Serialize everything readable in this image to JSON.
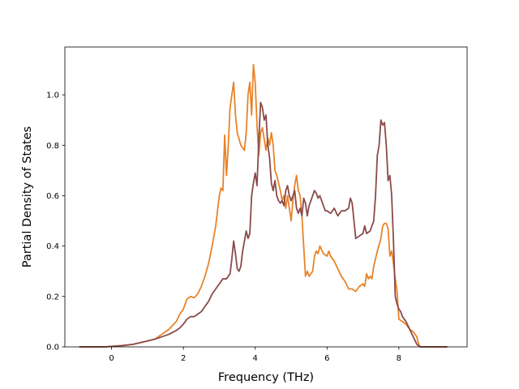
{
  "chart_data": {
    "type": "line",
    "title": "",
    "xlabel": "Frequency (THz)",
    "ylabel": "Partial Density of States",
    "xlim": [
      -1.3,
      9.9
    ],
    "ylim": [
      0.0,
      1.19
    ],
    "xticks": [
      0,
      2,
      4,
      6,
      8
    ],
    "yticks": [
      0.0,
      0.2,
      0.4,
      0.6,
      0.8,
      1.0
    ],
    "xtick_labels": [
      "0",
      "2",
      "4",
      "6",
      "8"
    ],
    "ytick_labels": [
      "0.0",
      "0.2",
      "0.4",
      "0.6",
      "0.8",
      "1.0"
    ],
    "grid": false,
    "legend": "none",
    "series": [
      {
        "color": "#e8832a",
        "x": [
          -0.9,
          -0.2,
          0.0,
          0.3,
          0.6,
          0.9,
          1.2,
          1.4,
          1.6,
          1.8,
          1.9,
          2.0,
          2.1,
          2.2,
          2.3,
          2.4,
          2.5,
          2.6,
          2.7,
          2.8,
          2.9,
          3.0,
          3.05,
          3.1,
          3.15,
          3.2,
          3.25,
          3.3,
          3.4,
          3.45,
          3.5,
          3.6,
          3.7,
          3.75,
          3.8,
          3.85,
          3.9,
          3.95,
          4.0,
          4.05,
          4.1,
          4.15,
          4.2,
          4.3,
          4.35,
          4.4,
          4.45,
          4.5,
          4.55,
          4.6,
          4.7,
          4.75,
          4.8,
          4.85,
          4.9,
          5.0,
          5.05,
          5.1,
          5.15,
          5.2,
          5.25,
          5.3,
          5.35,
          5.4,
          5.45,
          5.5,
          5.6,
          5.65,
          5.7,
          5.75,
          5.8,
          5.9,
          6.0,
          6.05,
          6.1,
          6.15,
          6.2,
          6.3,
          6.4,
          6.5,
          6.6,
          6.7,
          6.8,
          6.9,
          7.0,
          7.05,
          7.1,
          7.15,
          7.2,
          7.25,
          7.3,
          7.35,
          7.4,
          7.5,
          7.55,
          7.6,
          7.65,
          7.7,
          7.75,
          7.8,
          7.85,
          7.9,
          7.95,
          8.0,
          8.1,
          8.2,
          8.3,
          8.4,
          8.5,
          8.55,
          8.6,
          9.0,
          9.35
        ],
        "y": [
          0.0,
          0.0,
          0.002,
          0.005,
          0.01,
          0.02,
          0.03,
          0.05,
          0.07,
          0.1,
          0.13,
          0.15,
          0.19,
          0.2,
          0.195,
          0.21,
          0.24,
          0.28,
          0.33,
          0.4,
          0.48,
          0.6,
          0.63,
          0.62,
          0.84,
          0.68,
          0.8,
          0.95,
          1.05,
          0.92,
          0.85,
          0.8,
          0.78,
          0.85,
          1.0,
          1.05,
          0.92,
          1.12,
          1.05,
          0.88,
          0.76,
          0.85,
          0.87,
          0.78,
          0.83,
          0.8,
          0.85,
          0.8,
          0.7,
          0.68,
          0.62,
          0.58,
          0.6,
          0.55,
          0.6,
          0.5,
          0.58,
          0.64,
          0.68,
          0.62,
          0.6,
          0.52,
          0.4,
          0.28,
          0.3,
          0.28,
          0.3,
          0.36,
          0.38,
          0.37,
          0.4,
          0.37,
          0.36,
          0.38,
          0.36,
          0.35,
          0.34,
          0.31,
          0.28,
          0.26,
          0.23,
          0.23,
          0.22,
          0.24,
          0.25,
          0.24,
          0.29,
          0.27,
          0.28,
          0.27,
          0.32,
          0.35,
          0.38,
          0.43,
          0.48,
          0.49,
          0.49,
          0.47,
          0.36,
          0.38,
          0.33,
          0.27,
          0.22,
          0.11,
          0.1,
          0.09,
          0.07,
          0.06,
          0.04,
          0.01,
          0.0,
          0.0,
          0.0
        ]
      },
      {
        "color": "#8b4a4a",
        "x": [
          -0.9,
          -0.2,
          0.0,
          0.3,
          0.6,
          0.9,
          1.2,
          1.4,
          1.6,
          1.8,
          1.9,
          2.0,
          2.1,
          2.2,
          2.3,
          2.4,
          2.5,
          2.6,
          2.7,
          2.8,
          2.9,
          3.0,
          3.1,
          3.2,
          3.3,
          3.35,
          3.4,
          3.45,
          3.5,
          3.55,
          3.6,
          3.65,
          3.7,
          3.75,
          3.8,
          3.85,
          3.9,
          3.95,
          4.0,
          4.05,
          4.1,
          4.15,
          4.2,
          4.25,
          4.3,
          4.35,
          4.4,
          4.45,
          4.5,
          4.55,
          4.6,
          4.65,
          4.7,
          4.75,
          4.8,
          4.85,
          4.9,
          4.95,
          5.0,
          5.05,
          5.1,
          5.15,
          5.2,
          5.25,
          5.3,
          5.35,
          5.4,
          5.45,
          5.5,
          5.55,
          5.6,
          5.65,
          5.7,
          5.75,
          5.8,
          5.85,
          5.9,
          5.95,
          6.0,
          6.1,
          6.2,
          6.3,
          6.4,
          6.5,
          6.6,
          6.65,
          6.7,
          6.75,
          6.8,
          6.9,
          7.0,
          7.05,
          7.1,
          7.2,
          7.3,
          7.35,
          7.4,
          7.45,
          7.5,
          7.55,
          7.6,
          7.65,
          7.7,
          7.75,
          7.8,
          7.85,
          7.9,
          7.95,
          8.0,
          8.05,
          8.1,
          8.2,
          8.3,
          8.4,
          8.5,
          8.6,
          9.0,
          9.35
        ],
        "y": [
          0.0,
          0.0,
          0.002,
          0.005,
          0.01,
          0.02,
          0.03,
          0.04,
          0.05,
          0.065,
          0.075,
          0.09,
          0.11,
          0.12,
          0.12,
          0.13,
          0.14,
          0.16,
          0.18,
          0.21,
          0.23,
          0.25,
          0.27,
          0.27,
          0.29,
          0.35,
          0.42,
          0.37,
          0.31,
          0.3,
          0.32,
          0.38,
          0.42,
          0.46,
          0.43,
          0.45,
          0.6,
          0.65,
          0.69,
          0.64,
          0.82,
          0.97,
          0.95,
          0.9,
          0.92,
          0.8,
          0.75,
          0.65,
          0.62,
          0.66,
          0.6,
          0.58,
          0.57,
          0.58,
          0.56,
          0.62,
          0.64,
          0.6,
          0.58,
          0.6,
          0.62,
          0.55,
          0.53,
          0.55,
          0.52,
          0.59,
          0.57,
          0.52,
          0.56,
          0.58,
          0.6,
          0.62,
          0.61,
          0.59,
          0.6,
          0.58,
          0.56,
          0.54,
          0.54,
          0.53,
          0.55,
          0.52,
          0.54,
          0.54,
          0.55,
          0.59,
          0.57,
          0.5,
          0.43,
          0.44,
          0.45,
          0.48,
          0.45,
          0.46,
          0.5,
          0.6,
          0.76,
          0.8,
          0.9,
          0.88,
          0.89,
          0.8,
          0.66,
          0.68,
          0.6,
          0.42,
          0.2,
          0.17,
          0.15,
          0.14,
          0.12,
          0.1,
          0.07,
          0.04,
          0.01,
          0.0,
          0.0,
          0.0
        ]
      }
    ]
  }
}
